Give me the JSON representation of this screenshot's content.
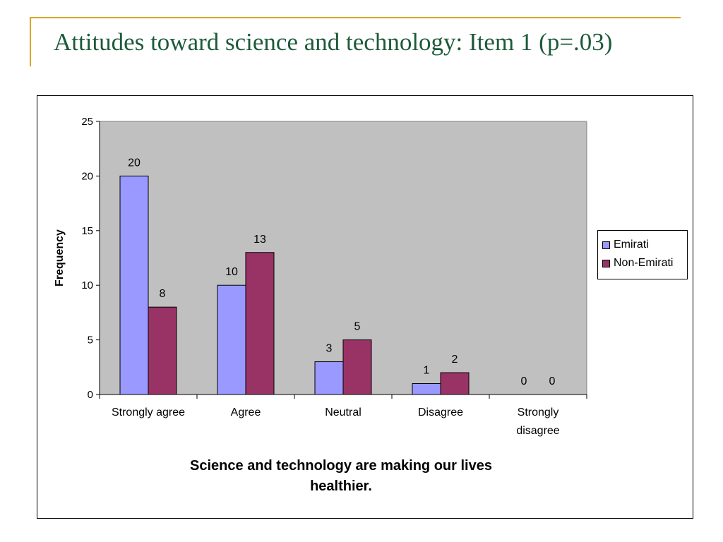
{
  "slide": {
    "title": "Attitudes toward science and technology: Item 1 (p=.03)",
    "accent_color": "#d4a82a",
    "title_color": "#1d5a3a"
  },
  "chart_data": {
    "type": "bar",
    "categories": [
      [
        "Strongly agree"
      ],
      [
        "Agree"
      ],
      [
        "Neutral"
      ],
      [
        "Disagree"
      ],
      [
        "Strongly",
        "disagree"
      ]
    ],
    "series": [
      {
        "name": "Emirati",
        "values": [
          20,
          10,
          3,
          1,
          0
        ],
        "color": "#9999ff"
      },
      {
        "name": "Non-Emirati",
        "values": [
          8,
          13,
          5,
          2,
          0
        ],
        "color": "#993366"
      }
    ],
    "xlabel": "Science and technology are making our lives healthier.",
    "ylabel": "Frequency",
    "ylim": [
      0,
      25
    ],
    "yticks": [
      0,
      5,
      10,
      15,
      20,
      25
    ],
    "plot_background": "#c0c0c0",
    "grid": false,
    "legend_position": "right",
    "data_labels": true
  }
}
